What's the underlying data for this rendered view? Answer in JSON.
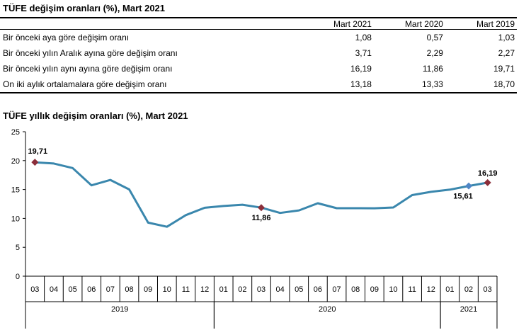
{
  "table": {
    "title": "TÜFE değişim oranları (%), Mart 2021",
    "columns": [
      "",
      "Mart 2021",
      "Mart 2020",
      "Mart 2019"
    ],
    "rows": [
      {
        "label": "Bir önceki aya göre değişim oranı",
        "values": [
          "1,08",
          "0,57",
          "1,03"
        ]
      },
      {
        "label": "Bir önceki yılın Aralık ayına göre değişim oranı",
        "values": [
          "3,71",
          "2,29",
          "2,27"
        ]
      },
      {
        "label": "Bir önceki yılın aynı ayına göre değişim oranı",
        "values": [
          "16,19",
          "11,86",
          "19,71"
        ]
      },
      {
        "label": "On iki aylık ortalamalara göre değişim oranı",
        "values": [
          "13,18",
          "13,33",
          "18,70"
        ]
      }
    ]
  },
  "chart_data": {
    "type": "line",
    "title": "TÜFE yıllık değişim oranları (%), Mart 2021",
    "categories": [
      "03",
      "04",
      "05",
      "06",
      "07",
      "08",
      "09",
      "10",
      "11",
      "12",
      "01",
      "02",
      "03",
      "04",
      "05",
      "06",
      "07",
      "08",
      "09",
      "10",
      "11",
      "12",
      "01",
      "02",
      "03"
    ],
    "years": [
      {
        "label": "2019",
        "start": 0,
        "end": 9
      },
      {
        "label": "2020",
        "start": 10,
        "end": 21
      },
      {
        "label": "2021",
        "start": 22,
        "end": 24
      }
    ],
    "series": [
      {
        "values": [
          19.71,
          19.5,
          18.71,
          15.72,
          16.65,
          15.01,
          9.26,
          8.55,
          10.56,
          11.84,
          12.15,
          12.37,
          11.86,
          10.94,
          11.39,
          12.62,
          11.76,
          11.77,
          11.75,
          11.89,
          14.03,
          14.6,
          14.97,
          15.61,
          16.19
        ]
      }
    ],
    "ylim": [
      0,
      25
    ],
    "yticks": [
      0,
      5,
      10,
      15,
      20,
      25
    ],
    "line_color": "#3A87AD",
    "marker_color": "#8B2E3A",
    "annotations": [
      {
        "index": 0,
        "label": "19,71",
        "marker": "diamond-dark"
      },
      {
        "index": 12,
        "label": "11,86",
        "marker": "diamond-dark"
      },
      {
        "index": 23,
        "label": "15,61",
        "marker": "diamond-blue"
      },
      {
        "index": 24,
        "label": "16,19",
        "marker": "diamond-dark"
      }
    ]
  }
}
